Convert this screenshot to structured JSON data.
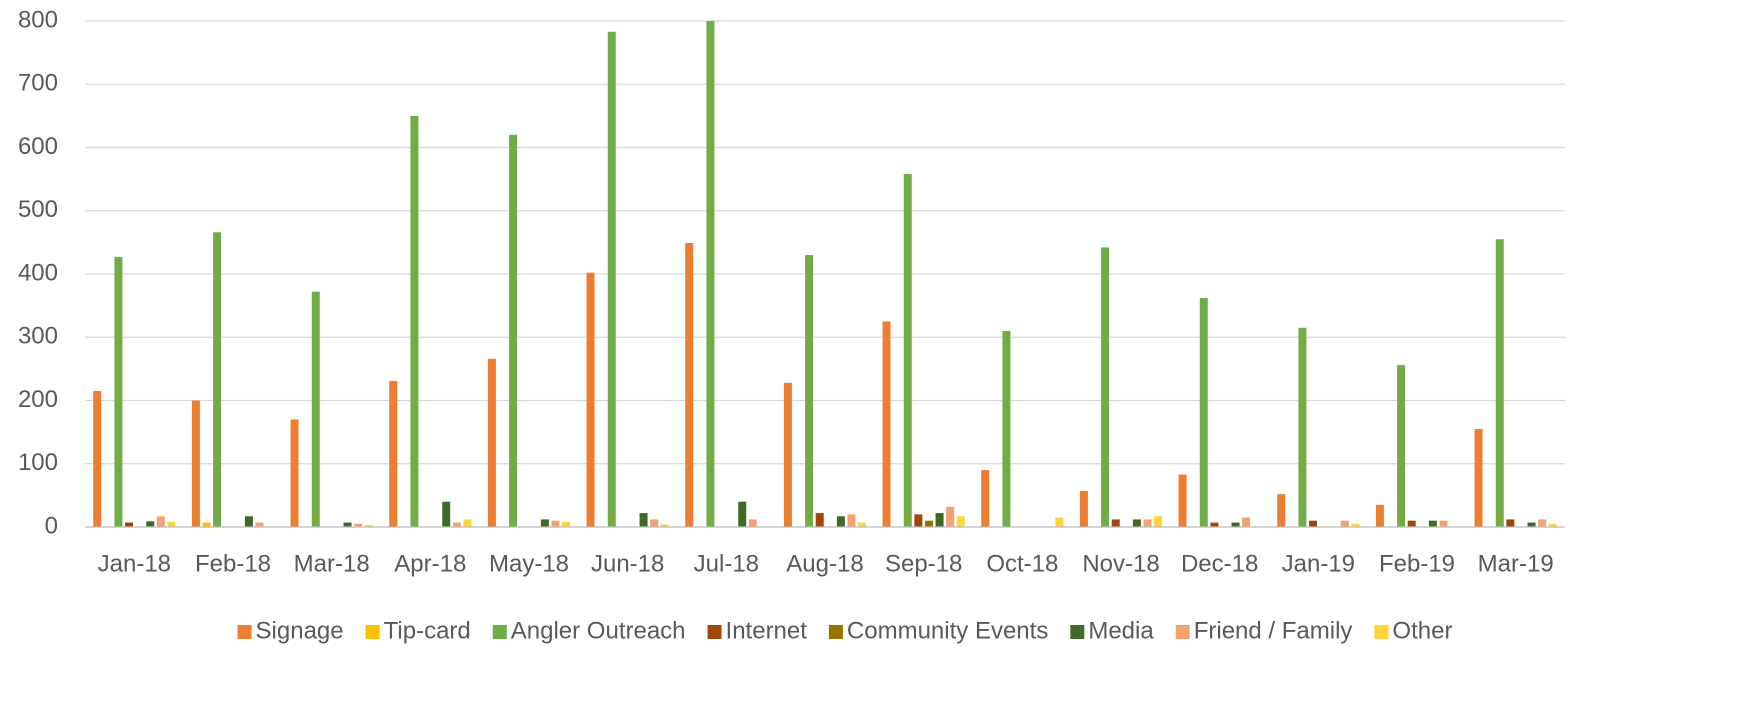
{
  "chart_data": {
    "type": "bar",
    "categories": [
      "Jan-18",
      "Feb-18",
      "Mar-18",
      "Apr-18",
      "May-18",
      "Jun-18",
      "Jul-18",
      "Aug-18",
      "Sep-18",
      "Oct-18",
      "Nov-18",
      "Dec-18",
      "Jan-19",
      "Feb-19",
      "Mar-19"
    ],
    "series": [
      {
        "name": "Signage",
        "color": "#ed7d31",
        "values": [
          215,
          200,
          170,
          231,
          266,
          402,
          449,
          228,
          325,
          90,
          57,
          83,
          52,
          35,
          155
        ]
      },
      {
        "name": "Tip-card",
        "color": "#ffc000",
        "values": [
          0,
          7,
          0,
          0,
          0,
          0,
          0,
          0,
          0,
          0,
          0,
          0,
          0,
          0,
          0
        ]
      },
      {
        "name": "Angler Outreach",
        "color": "#70ad47",
        "values": [
          427,
          466,
          372,
          650,
          620,
          783,
          800,
          430,
          558,
          310,
          442,
          362,
          315,
          256,
          455
        ]
      },
      {
        "name": "Internet",
        "color": "#9e480e",
        "values": [
          7,
          0,
          0,
          0,
          0,
          0,
          0,
          22,
          20,
          0,
          12,
          7,
          10,
          10,
          12
        ]
      },
      {
        "name": "Community Events",
        "color": "#997300",
        "values": [
          0,
          0,
          0,
          0,
          0,
          0,
          0,
          0,
          10,
          0,
          0,
          0,
          0,
          0,
          0
        ]
      },
      {
        "name": "Media",
        "color": "#3f6b26",
        "values": [
          9,
          17,
          7,
          40,
          12,
          22,
          40,
          17,
          22,
          0,
          12,
          7,
          0,
          10,
          7
        ]
      },
      {
        "name": "Friend / Family",
        "color": "#f4a070",
        "values": [
          17,
          7,
          5,
          7,
          10,
          12,
          12,
          20,
          32,
          0,
          12,
          15,
          10,
          10,
          12
        ]
      },
      {
        "name": "Other",
        "color": "#ffd43b",
        "values": [
          8,
          0,
          3,
          12,
          8,
          4,
          0,
          7,
          17,
          15,
          17,
          0,
          5,
          0,
          5
        ]
      }
    ],
    "ylim": [
      0,
      800
    ],
    "yticks": [
      0,
      100,
      200,
      300,
      400,
      500,
      600,
      700,
      800
    ],
    "grid": true,
    "legend": "bottom"
  }
}
